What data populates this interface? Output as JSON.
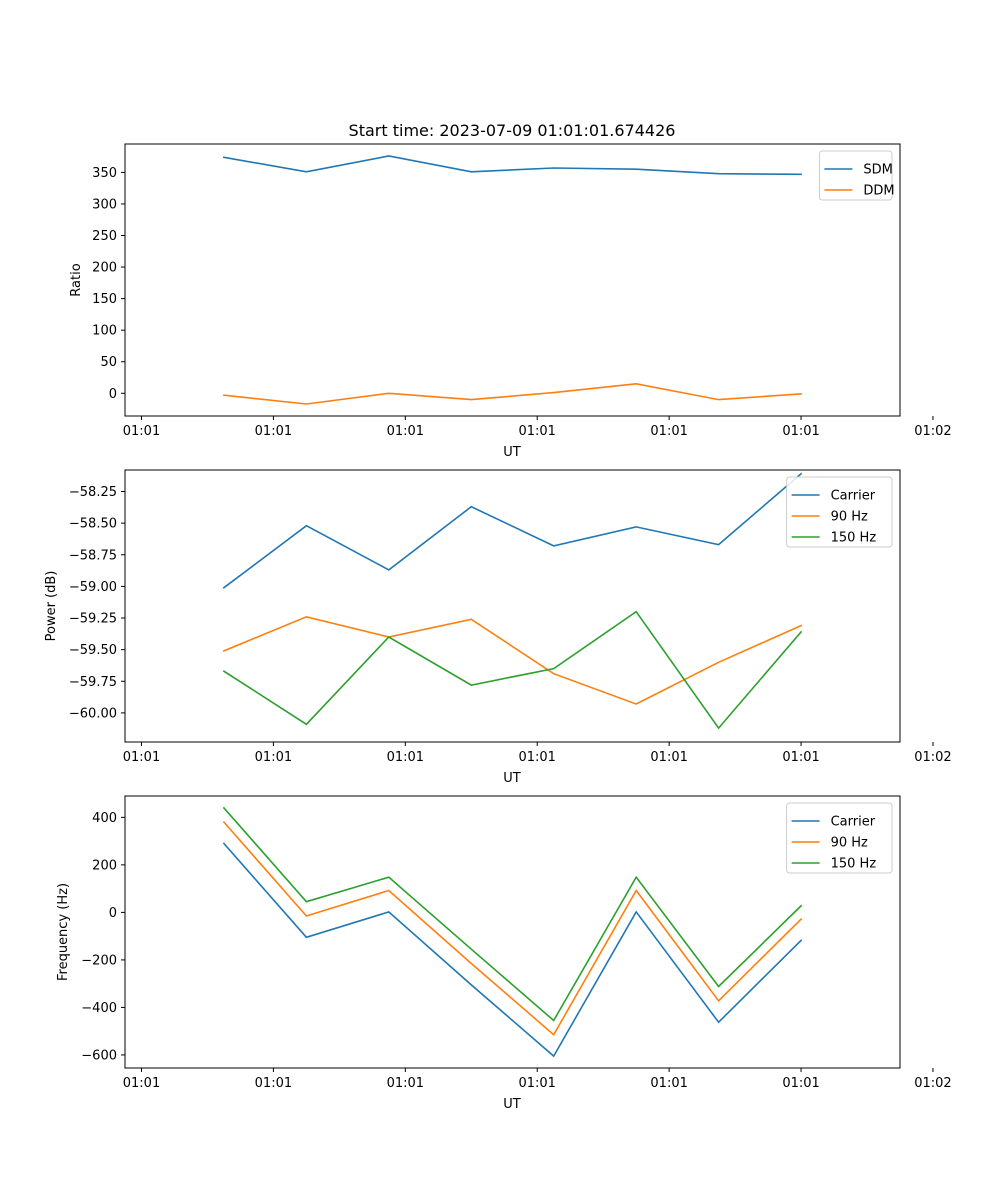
{
  "colors": {
    "blue": "#1f77b4",
    "orange": "#ff7f0e",
    "green": "#2ca02c",
    "legend_border": "#cccccc",
    "frame": "#000000"
  },
  "chart_data": [
    {
      "type": "line",
      "title": "Start time: 2023-07-09 01:01:01.674426",
      "xlabel": "UT",
      "ylabel": "Ratio",
      "x": [
        0.5,
        1.0,
        1.5,
        2.0,
        2.5,
        3.0,
        3.5,
        4.0
      ],
      "xlim": [
        -0.1,
        4.6
      ],
      "xticks": [
        0,
        0.8,
        1.6,
        2.4,
        3.2,
        4.0,
        4.8
      ],
      "xticklabels": [
        "01:01",
        "01:01",
        "01:01",
        "01:01",
        "01:01",
        "01:01",
        "01:02"
      ],
      "ylim": [
        -36,
        395
      ],
      "yticks": [
        0,
        50,
        100,
        150,
        200,
        250,
        300,
        350
      ],
      "yticklabels": [
        "0",
        "50",
        "100",
        "150",
        "200",
        "250",
        "300",
        "350"
      ],
      "legend": "top-right",
      "series": [
        {
          "name": "SDM",
          "color": "blue",
          "values": [
            374,
            351,
            376,
            351,
            357,
            355,
            348,
            347
          ]
        },
        {
          "name": "DDM",
          "color": "orange",
          "values": [
            -3,
            -17,
            0,
            -10,
            1,
            15,
            -10,
            -1
          ]
        }
      ]
    },
    {
      "type": "line",
      "title": "",
      "xlabel": "UT",
      "ylabel": "Power (dB)",
      "x": [
        0.5,
        1.0,
        1.5,
        2.0,
        2.5,
        3.0,
        3.5,
        4.0
      ],
      "xlim": [
        -0.1,
        4.6
      ],
      "xticks": [
        0,
        0.8,
        1.6,
        2.4,
        3.2,
        4.0,
        4.8
      ],
      "xticklabels": [
        "01:01",
        "01:01",
        "01:01",
        "01:01",
        "01:01",
        "01:01",
        "01:02"
      ],
      "ylim": [
        -60.23,
        -58.08
      ],
      "yticks": [
        -60.0,
        -59.75,
        -59.5,
        -59.25,
        -59.0,
        -58.75,
        -58.5,
        -58.25
      ],
      "yticklabels": [
        "−60.00",
        "−59.75",
        "−59.50",
        "−59.25",
        "−59.00",
        "−58.75",
        "−58.50",
        "−58.25"
      ],
      "legend": "top-right",
      "series": [
        {
          "name": "Carrier",
          "color": "blue",
          "values": [
            -59.01,
            -58.52,
            -58.87,
            -58.37,
            -58.68,
            -58.53,
            -58.67,
            -58.11
          ]
        },
        {
          "name": "90 Hz",
          "color": "orange",
          "values": [
            -59.51,
            -59.24,
            -59.4,
            -59.26,
            -59.69,
            -59.93,
            -59.6,
            -59.31
          ]
        },
        {
          "name": "150 Hz",
          "color": "green",
          "values": [
            -59.67,
            -60.09,
            -59.4,
            -59.78,
            -59.65,
            -59.2,
            -60.12,
            -59.36
          ]
        }
      ]
    },
    {
      "type": "line",
      "title": "",
      "xlabel": "UT",
      "ylabel": "Frequency (Hz)",
      "x": [
        0.5,
        1.0,
        1.5,
        2.0,
        2.5,
        3.0,
        3.5,
        4.0
      ],
      "xlim": [
        -0.1,
        4.6
      ],
      "xticks": [
        0,
        0.8,
        1.6,
        2.4,
        3.2,
        4.0,
        4.8
      ],
      "xticklabels": [
        "01:01",
        "01:01",
        "01:01",
        "01:01",
        "01:01",
        "01:01",
        "01:02"
      ],
      "ylim": [
        -655,
        490
      ],
      "yticks": [
        -600,
        -400,
        -200,
        0,
        200,
        400
      ],
      "yticklabels": [
        "−600",
        "−400",
        "−200",
        "0",
        "200",
        "400"
      ],
      "legend": "top-right",
      "series": [
        {
          "name": "Carrier",
          "color": "blue",
          "values": [
            290,
            -105,
            2,
            -305,
            -605,
            2,
            -462,
            -118
          ]
        },
        {
          "name": "90 Hz",
          "color": "orange",
          "values": [
            380,
            -15,
            92,
            -215,
            -515,
            92,
            -372,
            -28
          ]
        },
        {
          "name": "150 Hz",
          "color": "green",
          "values": [
            440,
            45,
            148,
            -155,
            -455,
            148,
            -312,
            28
          ]
        }
      ]
    }
  ]
}
